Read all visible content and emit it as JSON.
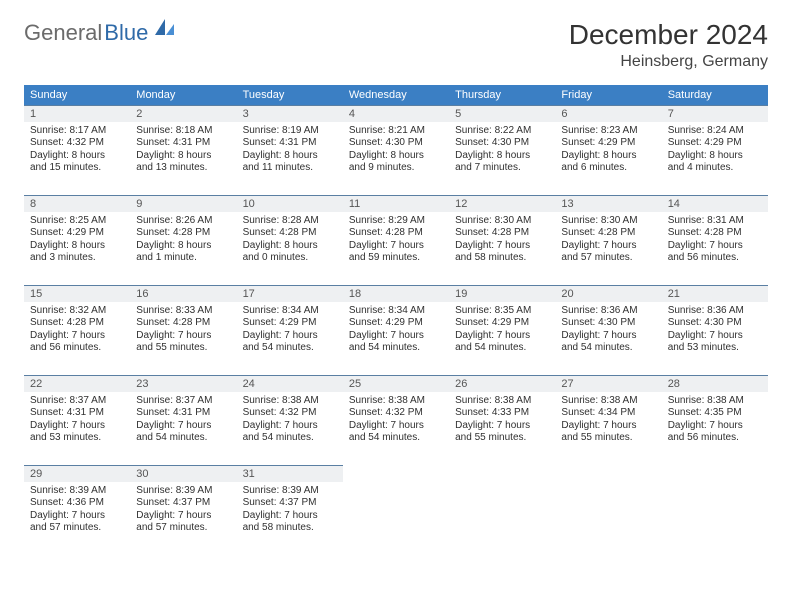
{
  "brand": {
    "general": "General",
    "blue": "Blue"
  },
  "title": "December 2024",
  "location": "Heinsberg, Germany",
  "dow": [
    "Sunday",
    "Monday",
    "Tuesday",
    "Wednesday",
    "Thursday",
    "Friday",
    "Saturday"
  ],
  "colors": {
    "header": "#3b7fc4",
    "rule": "#5a7fa3",
    "alt": "#eef0f2"
  },
  "weeks": [
    [
      {
        "n": "1",
        "sr": "8:17 AM",
        "ss": "4:32 PM",
        "dl": "8 hours and 15 minutes."
      },
      {
        "n": "2",
        "sr": "8:18 AM",
        "ss": "4:31 PM",
        "dl": "8 hours and 13 minutes."
      },
      {
        "n": "3",
        "sr": "8:19 AM",
        "ss": "4:31 PM",
        "dl": "8 hours and 11 minutes."
      },
      {
        "n": "4",
        "sr": "8:21 AM",
        "ss": "4:30 PM",
        "dl": "8 hours and 9 minutes."
      },
      {
        "n": "5",
        "sr": "8:22 AM",
        "ss": "4:30 PM",
        "dl": "8 hours and 7 minutes."
      },
      {
        "n": "6",
        "sr": "8:23 AM",
        "ss": "4:29 PM",
        "dl": "8 hours and 6 minutes."
      },
      {
        "n": "7",
        "sr": "8:24 AM",
        "ss": "4:29 PM",
        "dl": "8 hours and 4 minutes."
      }
    ],
    [
      {
        "n": "8",
        "sr": "8:25 AM",
        "ss": "4:29 PM",
        "dl": "8 hours and 3 minutes."
      },
      {
        "n": "9",
        "sr": "8:26 AM",
        "ss": "4:28 PM",
        "dl": "8 hours and 1 minute."
      },
      {
        "n": "10",
        "sr": "8:28 AM",
        "ss": "4:28 PM",
        "dl": "8 hours and 0 minutes."
      },
      {
        "n": "11",
        "sr": "8:29 AM",
        "ss": "4:28 PM",
        "dl": "7 hours and 59 minutes."
      },
      {
        "n": "12",
        "sr": "8:30 AM",
        "ss": "4:28 PM",
        "dl": "7 hours and 58 minutes."
      },
      {
        "n": "13",
        "sr": "8:30 AM",
        "ss": "4:28 PM",
        "dl": "7 hours and 57 minutes."
      },
      {
        "n": "14",
        "sr": "8:31 AM",
        "ss": "4:28 PM",
        "dl": "7 hours and 56 minutes."
      }
    ],
    [
      {
        "n": "15",
        "sr": "8:32 AM",
        "ss": "4:28 PM",
        "dl": "7 hours and 56 minutes."
      },
      {
        "n": "16",
        "sr": "8:33 AM",
        "ss": "4:28 PM",
        "dl": "7 hours and 55 minutes."
      },
      {
        "n": "17",
        "sr": "8:34 AM",
        "ss": "4:29 PM",
        "dl": "7 hours and 54 minutes."
      },
      {
        "n": "18",
        "sr": "8:34 AM",
        "ss": "4:29 PM",
        "dl": "7 hours and 54 minutes."
      },
      {
        "n": "19",
        "sr": "8:35 AM",
        "ss": "4:29 PM",
        "dl": "7 hours and 54 minutes."
      },
      {
        "n": "20",
        "sr": "8:36 AM",
        "ss": "4:30 PM",
        "dl": "7 hours and 54 minutes."
      },
      {
        "n": "21",
        "sr": "8:36 AM",
        "ss": "4:30 PM",
        "dl": "7 hours and 53 minutes."
      }
    ],
    [
      {
        "n": "22",
        "sr": "8:37 AM",
        "ss": "4:31 PM",
        "dl": "7 hours and 53 minutes."
      },
      {
        "n": "23",
        "sr": "8:37 AM",
        "ss": "4:31 PM",
        "dl": "7 hours and 54 minutes."
      },
      {
        "n": "24",
        "sr": "8:38 AM",
        "ss": "4:32 PM",
        "dl": "7 hours and 54 minutes."
      },
      {
        "n": "25",
        "sr": "8:38 AM",
        "ss": "4:32 PM",
        "dl": "7 hours and 54 minutes."
      },
      {
        "n": "26",
        "sr": "8:38 AM",
        "ss": "4:33 PM",
        "dl": "7 hours and 55 minutes."
      },
      {
        "n": "27",
        "sr": "8:38 AM",
        "ss": "4:34 PM",
        "dl": "7 hours and 55 minutes."
      },
      {
        "n": "28",
        "sr": "8:38 AM",
        "ss": "4:35 PM",
        "dl": "7 hours and 56 minutes."
      }
    ],
    [
      {
        "n": "29",
        "sr": "8:39 AM",
        "ss": "4:36 PM",
        "dl": "7 hours and 57 minutes."
      },
      {
        "n": "30",
        "sr": "8:39 AM",
        "ss": "4:37 PM",
        "dl": "7 hours and 57 minutes."
      },
      {
        "n": "31",
        "sr": "8:39 AM",
        "ss": "4:37 PM",
        "dl": "7 hours and 58 minutes."
      },
      null,
      null,
      null,
      null
    ]
  ],
  "labels": {
    "sunrise": "Sunrise:",
    "sunset": "Sunset:",
    "daylight": "Daylight:"
  }
}
